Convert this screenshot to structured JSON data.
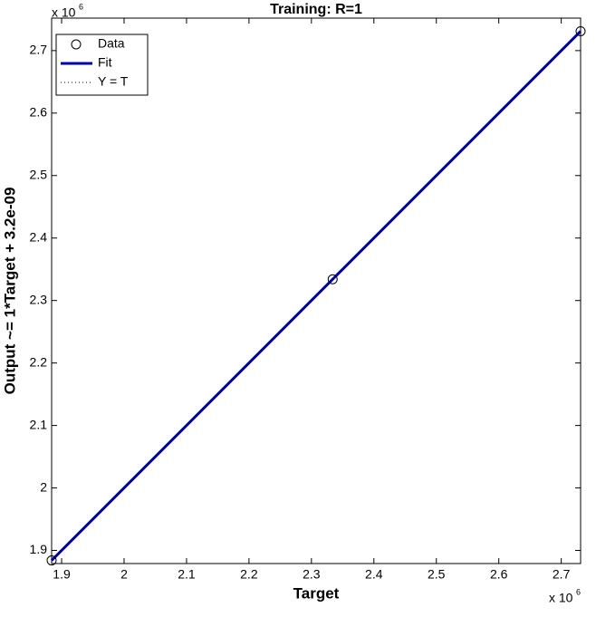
{
  "chart_data": {
    "type": "scatter",
    "title": "Training: R=1",
    "x_label": "Target",
    "y_label": "Output ~= 1*Target + 3.2e-09",
    "x_multiplier": {
      "base": "x 10",
      "exponent": "6"
    },
    "y_multiplier": {
      "base": "x 10",
      "exponent": "6"
    },
    "xlim": [
      1.884,
      2.731
    ],
    "ylim": [
      1.879,
      2.752
    ],
    "xticks": [
      1.9,
      2,
      2.1,
      2.2,
      2.3,
      2.4,
      2.5,
      2.6,
      2.7
    ],
    "yticks": [
      1.9,
      2,
      2.1,
      2.2,
      2.3,
      2.4,
      2.5,
      2.6,
      2.7
    ],
    "grid": false,
    "legend": "upper left",
    "series": [
      {
        "name": "Data",
        "kind": "markers",
        "color": "#000000",
        "x": [
          1.884,
          2.334,
          2.731
        ],
        "values": [
          1.884,
          2.334,
          2.731
        ]
      },
      {
        "name": "Fit",
        "kind": "line",
        "color": "#0000aa",
        "x": [
          1.884,
          2.334,
          2.731
        ],
        "values": [
          1.884,
          2.334,
          2.731
        ]
      },
      {
        "name": "Y = T",
        "kind": "dotted",
        "color": "#000000",
        "x": [
          1.884,
          2.731
        ],
        "values": [
          1.884,
          2.731
        ]
      }
    ]
  }
}
